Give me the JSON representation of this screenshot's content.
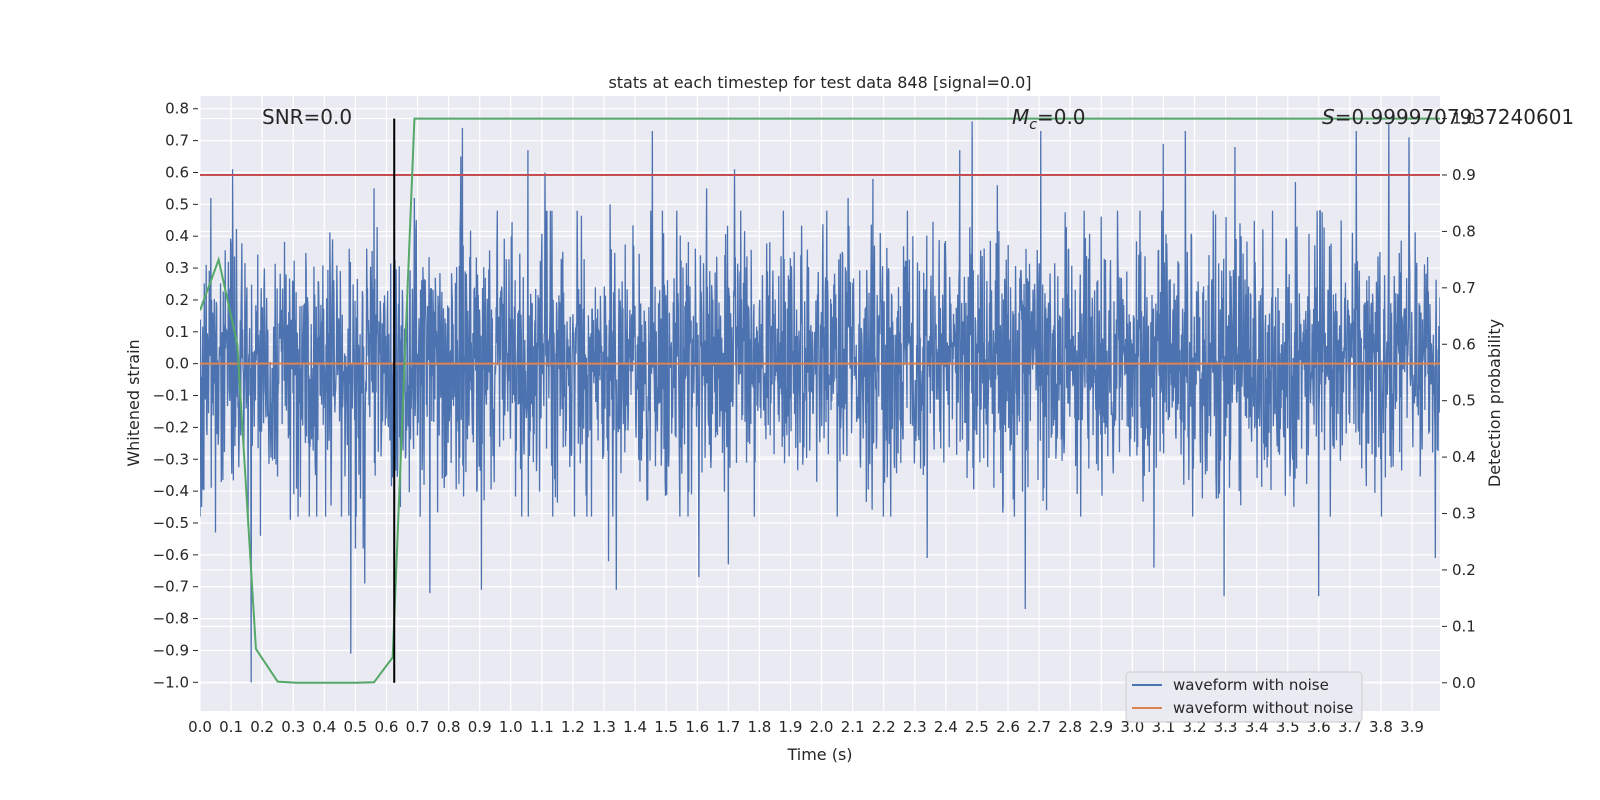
{
  "chart_data": {
    "type": "line",
    "title": "stats at each timestep for test data 848 [signal=0.0]",
    "xlabel": "Time (s)",
    "ylabel": "Whitened strain",
    "y2label": "Detection probability",
    "xlim": [
      0.0,
      3.99
    ],
    "ylim": [
      -1.09,
      0.84
    ],
    "y2lim": [
      -0.05,
      1.04
    ],
    "x_ticks": [
      0.0,
      0.1,
      0.2,
      0.3,
      0.4,
      0.5,
      0.6,
      0.7,
      0.8,
      0.9,
      1.0,
      1.1,
      1.2,
      1.3,
      1.4,
      1.5,
      1.6,
      1.7,
      1.8,
      1.9,
      2.0,
      2.1,
      2.2,
      2.3,
      2.4,
      2.5,
      2.6,
      2.7,
      2.8,
      2.9,
      3.0,
      3.1,
      3.2,
      3.3,
      3.4,
      3.5,
      3.6,
      3.7,
      3.8,
      3.9
    ],
    "x_tick_labels": [
      "0.0",
      "0.1",
      "0.2",
      "0.3",
      "0.4",
      "0.5",
      "0.6",
      "0.7",
      "0.8",
      "0.9",
      "1.0",
      "1.1",
      "1.2",
      "1.3",
      "1.4",
      "1.5",
      "1.6",
      "1.7",
      "1.8",
      "1.9",
      "2.0",
      "2.1",
      "2.2",
      "2.3",
      "2.4",
      "2.5",
      "2.6",
      "2.7",
      "2.8",
      "2.9",
      "3.0",
      "3.1",
      "3.2",
      "3.3",
      "3.4",
      "3.5",
      "3.6",
      "3.7",
      "3.8",
      "3.9"
    ],
    "y_ticks": [
      0.8,
      0.7,
      0.6,
      0.5,
      0.4,
      0.3,
      0.2,
      0.1,
      0.0,
      -0.1,
      -0.2,
      -0.3,
      -0.4,
      -0.5,
      -0.6,
      -0.7,
      -0.8,
      -0.9,
      -1.0
    ],
    "y_tick_labels": [
      "0.8",
      "0.7",
      "0.6",
      "0.5",
      "0.4",
      "0.3",
      "0.2",
      "0.1",
      "0.0",
      "−0.1",
      "−0.2",
      "−0.3",
      "−0.4",
      "−0.5",
      "−0.6",
      "−0.7",
      "−0.8",
      "−0.9",
      "−1.0"
    ],
    "y2_ticks": [
      1.0,
      0.9,
      0.8,
      0.7,
      0.6,
      0.5,
      0.4,
      0.3,
      0.2,
      0.1,
      0.0
    ],
    "y2_tick_labels": [
      "1.0",
      "0.9",
      "0.8",
      "0.7",
      "0.6",
      "0.5",
      "0.4",
      "0.3",
      "0.2",
      "0.1",
      "0.0"
    ],
    "annotations": {
      "snr": "SNR=0.0",
      "mc_symbol": "M",
      "mc_sub": "c",
      "mc_value": "=0.0",
      "s_symbol": "S",
      "s_value": "=0.9999707937240601"
    },
    "series": [
      {
        "name": "waveform with noise",
        "color": "#4c72b0",
        "noise_envelope": {
          "typical_amplitude": 0.2,
          "peak_max": 0.76,
          "peak_min": -1.0
        },
        "spikes": [
          {
            "x": 0.005,
            "y": -0.45
          },
          {
            "x": 0.02,
            "y": 0.31
          },
          {
            "x": 0.035,
            "y": 0.52
          },
          {
            "x": 0.05,
            "y": -0.53
          },
          {
            "x": 0.105,
            "y": 0.61
          },
          {
            "x": 0.155,
            "y": -0.51
          },
          {
            "x": 0.165,
            "y": -1.0
          },
          {
            "x": 0.195,
            "y": -0.54
          },
          {
            "x": 0.29,
            "y": -0.49
          },
          {
            "x": 0.485,
            "y": -0.91
          },
          {
            "x": 0.5,
            "y": -0.58
          },
          {
            "x": 0.525,
            "y": -0.58
          },
          {
            "x": 0.53,
            "y": -0.69
          },
          {
            "x": 0.56,
            "y": 0.55
          },
          {
            "x": 0.645,
            "y": -0.45
          },
          {
            "x": 0.69,
            "y": 0.52
          },
          {
            "x": 0.74,
            "y": -0.72
          },
          {
            "x": 0.84,
            "y": 0.65
          },
          {
            "x": 0.845,
            "y": 0.74
          },
          {
            "x": 0.905,
            "y": -0.71
          },
          {
            "x": 1.055,
            "y": 0.67
          },
          {
            "x": 1.11,
            "y": 0.6
          },
          {
            "x": 1.315,
            "y": -0.62
          },
          {
            "x": 1.32,
            "y": 0.5
          },
          {
            "x": 1.34,
            "y": -0.71
          },
          {
            "x": 1.455,
            "y": 0.73
          },
          {
            "x": 1.605,
            "y": -0.67
          },
          {
            "x": 1.63,
            "y": 0.55
          },
          {
            "x": 1.7,
            "y": -0.63
          },
          {
            "x": 1.72,
            "y": 0.61
          },
          {
            "x": 2.085,
            "y": 0.52
          },
          {
            "x": 2.165,
            "y": 0.58
          },
          {
            "x": 2.34,
            "y": -0.61
          },
          {
            "x": 2.445,
            "y": 0.67
          },
          {
            "x": 2.485,
            "y": 0.76
          },
          {
            "x": 2.565,
            "y": 0.56
          },
          {
            "x": 2.655,
            "y": -0.77
          },
          {
            "x": 2.705,
            "y": 0.73
          },
          {
            "x": 3.07,
            "y": -0.64
          },
          {
            "x": 3.1,
            "y": 0.69
          },
          {
            "x": 3.17,
            "y": 0.73
          },
          {
            "x": 3.295,
            "y": -0.73
          },
          {
            "x": 3.33,
            "y": 0.68
          },
          {
            "x": 3.525,
            "y": 0.57
          },
          {
            "x": 3.6,
            "y": -0.73
          },
          {
            "x": 3.72,
            "y": 0.73
          },
          {
            "x": 3.825,
            "y": 0.75
          },
          {
            "x": 3.89,
            "y": 0.71
          },
          {
            "x": 3.975,
            "y": -0.61
          }
        ]
      },
      {
        "name": "waveform without noise",
        "color": "#dd8452",
        "x": [
          0.0,
          3.99
        ],
        "y": [
          0.0,
          0.0
        ]
      },
      {
        "name": "detection probability",
        "axis": "right",
        "color": "#55a868",
        "x": [
          0.0,
          0.06,
          0.12,
          0.18,
          0.25,
          0.31,
          0.37,
          0.43,
          0.5,
          0.56,
          0.62,
          0.69,
          3.99
        ],
        "y": [
          0.66,
          0.75,
          0.6,
          0.06,
          0.002,
          0.0,
          0.0,
          0.0,
          0.0,
          0.001,
          0.045,
          1.0,
          1.0
        ]
      }
    ],
    "reference_lines": [
      {
        "name": "threshold",
        "axis": "right",
        "orientation": "horizontal",
        "y": 0.9,
        "color": "#c44e52"
      },
      {
        "name": "event-time",
        "orientation": "vertical",
        "x": 0.625,
        "color": "#000000"
      }
    ],
    "legend": {
      "position": "lower-right",
      "entries": [
        {
          "label": "waveform with noise",
          "color": "#4c72b0"
        },
        {
          "label": "waveform without noise",
          "color": "#dd8452"
        }
      ]
    },
    "grid": true,
    "background_color": "#eaeaf2",
    "grid_color": "#ffffff"
  }
}
